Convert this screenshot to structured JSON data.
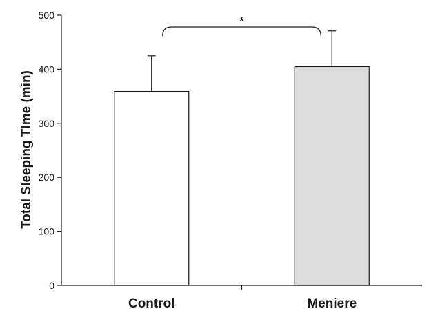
{
  "chart_data": {
    "type": "bar",
    "categories": [
      "Control",
      "Meniere"
    ],
    "values": [
      359,
      405
    ],
    "errors": [
      66,
      66
    ],
    "bar_colors": [
      "#ffffff",
      "#dcdcdc"
    ],
    "ylabel": "Total Sleeping TIme (min)",
    "ylim": [
      0,
      500
    ],
    "yticks": [
      0,
      100,
      200,
      300,
      400,
      500
    ],
    "grid": false,
    "significance": {
      "between": [
        0,
        1
      ],
      "label": "*"
    }
  }
}
